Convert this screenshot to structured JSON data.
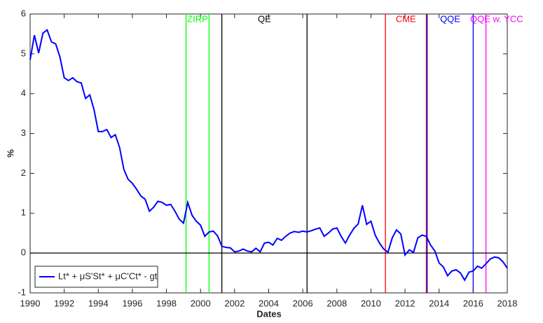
{
  "chart_data": {
    "type": "line",
    "x_label": "Dates",
    "y_label": "%",
    "x": [
      1990.0,
      1990.25,
      1990.5,
      1990.75,
      1991.0,
      1991.25,
      1991.5,
      1991.75,
      1992.0,
      1992.25,
      1992.5,
      1992.75,
      1993.0,
      1993.25,
      1993.5,
      1993.75,
      1994.0,
      1994.25,
      1994.5,
      1994.75,
      1995.0,
      1995.25,
      1995.5,
      1995.75,
      1996.0,
      1996.25,
      1996.5,
      1996.75,
      1997.0,
      1997.25,
      1997.5,
      1997.75,
      1998.0,
      1998.25,
      1998.5,
      1998.75,
      1999.0,
      1999.25,
      1999.5,
      1999.75,
      2000.0,
      2000.25,
      2000.5,
      2000.75,
      2001.0,
      2001.25,
      2001.5,
      2001.75,
      2002.0,
      2002.25,
      2002.5,
      2002.75,
      2003.0,
      2003.25,
      2003.5,
      2003.75,
      2004.0,
      2004.25,
      2004.5,
      2004.75,
      2005.0,
      2005.25,
      2005.5,
      2005.75,
      2006.0,
      2006.25,
      2006.5,
      2006.75,
      2007.0,
      2007.25,
      2007.5,
      2007.75,
      2008.0,
      2008.25,
      2008.5,
      2008.75,
      2009.0,
      2009.25,
      2009.5,
      2009.75,
      2010.0,
      2010.25,
      2010.5,
      2010.75,
      2011.0,
      2011.25,
      2011.5,
      2011.75,
      2012.0,
      2012.25,
      2012.5,
      2012.75,
      2013.0,
      2013.25,
      2013.5,
      2013.75,
      2014.0,
      2014.25,
      2014.5,
      2014.75,
      2015.0,
      2015.25,
      2015.5,
      2015.75,
      2016.0,
      2016.25,
      2016.5,
      2016.75,
      2017.0,
      2017.25,
      2017.5,
      2017.75,
      2018.0
    ],
    "series": [
      {
        "name": "Lt* + μS'St* + μC'Ct* - gt",
        "color": "#0000ff",
        "values": [
          4.85,
          5.47,
          5.02,
          5.52,
          5.6,
          5.3,
          5.25,
          4.92,
          4.4,
          4.33,
          4.4,
          4.3,
          4.27,
          3.88,
          3.97,
          3.6,
          3.05,
          3.05,
          3.1,
          2.9,
          2.97,
          2.65,
          2.1,
          1.85,
          1.75,
          1.6,
          1.43,
          1.35,
          1.05,
          1.15,
          1.3,
          1.27,
          1.2,
          1.22,
          1.05,
          0.85,
          0.75,
          1.27,
          0.95,
          0.8,
          0.7,
          0.42,
          0.53,
          0.55,
          0.43,
          0.17,
          0.14,
          0.13,
          0.03,
          0.05,
          0.1,
          0.05,
          0.03,
          0.12,
          0.03,
          0.25,
          0.27,
          0.2,
          0.37,
          0.32,
          0.42,
          0.5,
          0.54,
          0.52,
          0.55,
          0.53,
          0.56,
          0.6,
          0.63,
          0.42,
          0.5,
          0.6,
          0.63,
          0.42,
          0.25,
          0.45,
          0.62,
          0.73,
          1.2,
          0.72,
          0.8,
          0.45,
          0.25,
          0.1,
          0.02,
          0.38,
          0.58,
          0.48,
          -0.05,
          0.08,
          0.02,
          0.38,
          0.45,
          0.42,
          0.2,
          0.05,
          -0.25,
          -0.35,
          -0.57,
          -0.45,
          -0.42,
          -0.5,
          -0.68,
          -0.48,
          -0.45,
          -0.33,
          -0.38,
          -0.27,
          -0.15,
          -0.1,
          -0.12,
          -0.22,
          -0.38
        ]
      }
    ],
    "events": [
      {
        "label": "ZIRP",
        "color": "#00ff00",
        "dates": [
          1999.15,
          2000.5
        ]
      },
      {
        "label": "QE",
        "color": "#000000",
        "dates": [
          2001.25,
          2006.25
        ]
      },
      {
        "label": "CME",
        "color": "#ff0000",
        "dates": [
          2010.85,
          2013.25
        ]
      },
      {
        "label": "QQE",
        "color": "#0000ff",
        "dates": [
          2013.3,
          2016.0
        ]
      },
      {
        "label": "QQE w. YCC",
        "color": "#ff00ff",
        "dates": [
          2016.75
        ]
      }
    ],
    "hline": 0,
    "xlim": [
      1990,
      2018
    ],
    "xticks": [
      1990,
      1992,
      1994,
      1996,
      1998,
      2000,
      2002,
      2004,
      2006,
      2008,
      2010,
      2012,
      2014,
      2016,
      2018
    ],
    "ylim": [
      -1,
      6
    ],
    "yticks": [
      -1,
      0,
      1,
      2,
      3,
      4,
      5,
      6
    ],
    "legend": "lower left"
  }
}
